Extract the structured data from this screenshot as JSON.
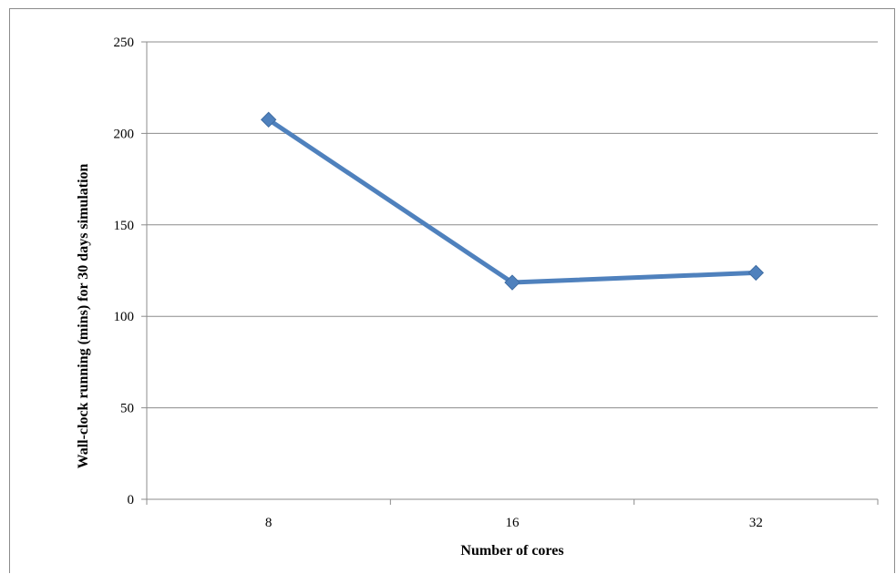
{
  "chart_data": {
    "type": "line",
    "title": "",
    "xlabel": "Number of cores",
    "ylabel": "Wall-clock running (mins) for 30 days simulation",
    "categories": [
      "8",
      "16",
      "32"
    ],
    "series": [
      {
        "values": [
          207.5,
          118.5,
          123.8
        ],
        "color": "#4f81bd",
        "marker": "diamond"
      }
    ],
    "ylim": [
      0,
      250
    ],
    "yticks": [
      "0",
      "50",
      "100",
      "150",
      "200",
      "250"
    ],
    "grid": "horizontal major gridlines",
    "legend": "none"
  }
}
